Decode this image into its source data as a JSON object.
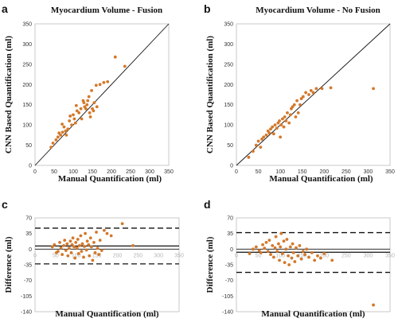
{
  "figure": {
    "panels": [
      "a",
      "b",
      "c",
      "d"
    ]
  },
  "chart_data": [
    {
      "panel": "a",
      "type": "scatter",
      "title": "Myocardium Volume - Fusion",
      "xlabel": "Manual Quantification (ml)",
      "ylabel": "CNN Based Quantification (ml)",
      "xlim": [
        0,
        350
      ],
      "ylim": [
        0,
        350
      ],
      "xticks": [
        "0",
        "50",
        "100",
        "150",
        "200",
        "250",
        "300",
        "350"
      ],
      "yticks": [
        "0",
        "50",
        "100",
        "150",
        "200",
        "250",
        "300",
        "350"
      ],
      "identity_line": true,
      "marker_color": "#d4782a",
      "points": [
        [
          42,
          45
        ],
        [
          47,
          55
        ],
        [
          55,
          63
        ],
        [
          60,
          70
        ],
        [
          67,
          75
        ],
        [
          63,
          80
        ],
        [
          72,
          82
        ],
        [
          76,
          95
        ],
        [
          71,
          102
        ],
        [
          80,
          85
        ],
        [
          82,
          75
        ],
        [
          86,
          90
        ],
        [
          90,
          110
        ],
        [
          92,
          122
        ],
        [
          96,
          100
        ],
        [
          100,
          125
        ],
        [
          103,
          115
        ],
        [
          106,
          105
        ],
        [
          110,
          135
        ],
        [
          108,
          148
        ],
        [
          115,
          130
        ],
        [
          120,
          140
        ],
        [
          122,
          115
        ],
        [
          126,
          160
        ],
        [
          128,
          155
        ],
        [
          130,
          145
        ],
        [
          133,
          140
        ],
        [
          136,
          150
        ],
        [
          138,
          160
        ],
        [
          141,
          170
        ],
        [
          143,
          130
        ],
        [
          145,
          120
        ],
        [
          150,
          140
        ],
        [
          153,
          135
        ],
        [
          155,
          155
        ],
        [
          148,
          185
        ],
        [
          160,
          198
        ],
        [
          162,
          145
        ],
        [
          170,
          200
        ],
        [
          180,
          205
        ],
        [
          190,
          207
        ],
        [
          210,
          268
        ],
        [
          235,
          245
        ]
      ]
    },
    {
      "panel": "b",
      "type": "scatter",
      "title": "Myocardium Volume - No Fusion",
      "xlabel": "Manual Quantification (ml)",
      "ylabel": "CNN Based Quantification (ml)",
      "xlim": [
        0,
        350
      ],
      "ylim": [
        0,
        350
      ],
      "xticks": [
        "0",
        "50",
        "100",
        "150",
        "200",
        "250",
        "300",
        "350"
      ],
      "yticks": [
        "0",
        "50",
        "100",
        "150",
        "200",
        "250",
        "300",
        "350"
      ],
      "identity_line": true,
      "marker_color": "#d4782a",
      "points": [
        [
          28,
          20
        ],
        [
          38,
          35
        ],
        [
          45,
          50
        ],
        [
          50,
          60
        ],
        [
          55,
          45
        ],
        [
          58,
          65
        ],
        [
          62,
          70
        ],
        [
          68,
          75
        ],
        [
          72,
          85
        ],
        [
          75,
          80
        ],
        [
          78,
          90
        ],
        [
          82,
          95
        ],
        [
          85,
          78
        ],
        [
          88,
          100
        ],
        [
          92,
          92
        ],
        [
          95,
          105
        ],
        [
          98,
          110
        ],
        [
          100,
          70
        ],
        [
          102,
          100
        ],
        [
          105,
          115
        ],
        [
          108,
          95
        ],
        [
          110,
          120
        ],
        [
          113,
          110
        ],
        [
          116,
          130
        ],
        [
          120,
          105
        ],
        [
          123,
          125
        ],
        [
          125,
          140
        ],
        [
          128,
          145
        ],
        [
          132,
          150
        ],
        [
          135,
          120
        ],
        [
          138,
          160
        ],
        [
          141,
          130
        ],
        [
          145,
          150
        ],
        [
          148,
          165
        ],
        [
          152,
          170
        ],
        [
          158,
          180
        ],
        [
          165,
          175
        ],
        [
          170,
          185
        ],
        [
          175,
          180
        ],
        [
          182,
          190
        ],
        [
          195,
          190
        ],
        [
          215,
          192
        ],
        [
          312,
          190
        ]
      ]
    },
    {
      "panel": "c",
      "type": "scatter",
      "xlabel": "Manual Quantification (ml)",
      "ylabel": "Difference (ml)",
      "xlim": [
        0,
        350
      ],
      "ylim": [
        -140,
        70
      ],
      "xticks": [
        "0",
        "50",
        "100",
        "150",
        "200",
        "250",
        "300",
        "350"
      ],
      "yticks": [
        "70",
        "35",
        "0",
        "-35",
        "-70",
        "-105",
        "-140"
      ],
      "mean_line": 7,
      "limits_of_agreement": [
        47,
        -33
      ],
      "marker_color": "#d4782a",
      "points": [
        [
          42,
          5
        ],
        [
          47,
          10
        ],
        [
          52,
          -8
        ],
        [
          56,
          -5
        ],
        [
          60,
          15
        ],
        [
          63,
          3
        ],
        [
          66,
          -12
        ],
        [
          70,
          8
        ],
        [
          72,
          20
        ],
        [
          75,
          -3
        ],
        [
          78,
          12
        ],
        [
          80,
          -15
        ],
        [
          83,
          2
        ],
        [
          86,
          18
        ],
        [
          88,
          -8
        ],
        [
          90,
          10
        ],
        [
          92,
          25
        ],
        [
          95,
          5
        ],
        [
          97,
          -20
        ],
        [
          99,
          15
        ],
        [
          102,
          3
        ],
        [
          104,
          22
        ],
        [
          106,
          -10
        ],
        [
          108,
          8
        ],
        [
          111,
          30
        ],
        [
          113,
          -5
        ],
        [
          115,
          12
        ],
        [
          118,
          -18
        ],
        [
          120,
          6
        ],
        [
          122,
          35
        ],
        [
          125,
          -2
        ],
        [
          127,
          18
        ],
        [
          130,
          10
        ],
        [
          132,
          -15
        ],
        [
          135,
          25
        ],
        [
          137,
          5
        ],
        [
          140,
          -25
        ],
        [
          143,
          15
        ],
        [
          146,
          -8
        ],
        [
          149,
          38
        ],
        [
          152,
          2
        ],
        [
          155,
          -12
        ],
        [
          158,
          20
        ],
        [
          162,
          -3
        ],
        [
          168,
          42
        ],
        [
          175,
          35
        ],
        [
          185,
          30
        ],
        [
          212,
          57
        ],
        [
          238,
          8
        ]
      ]
    },
    {
      "panel": "d",
      "type": "scatter",
      "xlabel": "Manual Quantification (ml)",
      "ylabel": "Difference (ml)",
      "xlim": [
        0,
        350
      ],
      "ylim": [
        -140,
        70
      ],
      "xticks": [
        "0",
        "50",
        "100",
        "150",
        "200",
        "250",
        "300",
        "350"
      ],
      "yticks": [
        "70",
        "35",
        "0",
        "-35",
        "-70",
        "-105",
        "-140"
      ],
      "mean_line": -7,
      "limits_of_agreement": [
        37,
        -52
      ],
      "marker_color": "#d4782a",
      "points": [
        [
          30,
          -10
        ],
        [
          38,
          0
        ],
        [
          45,
          5
        ],
        [
          52,
          -3
        ],
        [
          56,
          -8
        ],
        [
          60,
          10
        ],
        [
          64,
          2
        ],
        [
          68,
          15
        ],
        [
          72,
          -5
        ],
        [
          75,
          20
        ],
        [
          78,
          -12
        ],
        [
          82,
          8
        ],
        [
          85,
          -18
        ],
        [
          88,
          3
        ],
        [
          90,
          28
        ],
        [
          93,
          -5
        ],
        [
          96,
          12
        ],
        [
          98,
          -25
        ],
        [
          100,
          5
        ],
        [
          102,
          35
        ],
        [
          105,
          -10
        ],
        [
          108,
          18
        ],
        [
          110,
          -30
        ],
        [
          113,
          0
        ],
        [
          115,
          22
        ],
        [
          118,
          -15
        ],
        [
          120,
          -35
        ],
        [
          123,
          5
        ],
        [
          126,
          -20
        ],
        [
          128,
          12
        ],
        [
          130,
          -8
        ],
        [
          133,
          -28
        ],
        [
          136,
          3
        ],
        [
          140,
          -15
        ],
        [
          144,
          8
        ],
        [
          148,
          -22
        ],
        [
          152,
          -5
        ],
        [
          156,
          -12
        ],
        [
          160,
          0
        ],
        [
          165,
          -18
        ],
        [
          172,
          -8
        ],
        [
          178,
          -25
        ],
        [
          185,
          -15
        ],
        [
          192,
          -20
        ],
        [
          200,
          -10
        ],
        [
          218,
          -25
        ],
        [
          312,
          -125
        ]
      ]
    }
  ]
}
